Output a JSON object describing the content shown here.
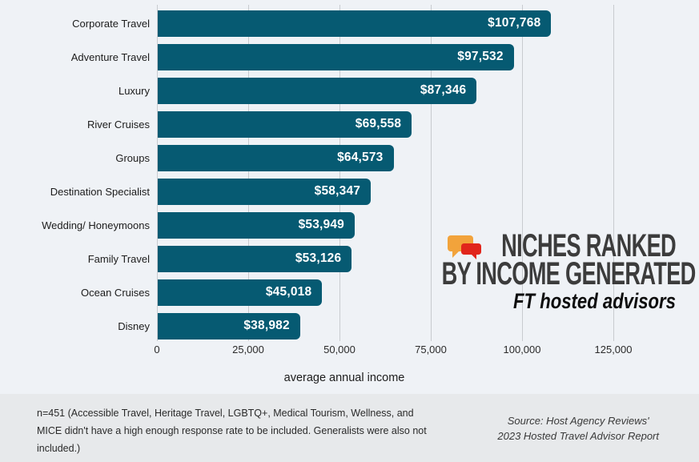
{
  "chart_data": {
    "type": "bar",
    "orientation": "horizontal",
    "title": "NICHES RANKED BY INCOME GENERATED",
    "subtitle": "FT hosted advisors",
    "xlabel": "average annual income",
    "categories": [
      "Corporate Travel",
      "Adventure Travel",
      "Luxury",
      "River Cruises",
      "Groups",
      "Destination Specialist",
      "Wedding/ Honeymoons",
      "Family Travel",
      "Ocean Cruises",
      "Disney"
    ],
    "values": [
      107768,
      97532,
      87346,
      69558,
      64573,
      58347,
      53949,
      53126,
      45018,
      38982
    ],
    "display_values": [
      "$107,768",
      "$97,532",
      "$87,346",
      "$69,558",
      "$64,573",
      "$58,347",
      "$53,949",
      "$53,126",
      "$45,018",
      "$38,982"
    ],
    "x_ticks": [
      "0",
      "25,000",
      "50,000",
      "75,000",
      "100,000",
      "125,000"
    ],
    "x_tick_values": [
      0,
      25000,
      50000,
      75000,
      100000,
      125000
    ],
    "xlim": [
      0,
      130000
    ],
    "grid": true,
    "legend": "none",
    "bar_color": "#065A72",
    "value_label_color": "#FFFFFF"
  },
  "title_block": {
    "line1": "NICHES RANKED",
    "line2": "BY INCOME GENERATED",
    "subtitle": "FT hosted advisors",
    "logo_icon": "chat-bubbles-logo",
    "logo_yellow": "#F2A33B",
    "logo_red": "#E1251B"
  },
  "footer": {
    "note_lines": [
      "n=451 (Accessible Travel, Heritage Travel, LGBTQ+, Medical Tourism, Wellness, and",
      "MICE didn't have a high enough response rate to be included. Generalists were also not",
      "included.)"
    ],
    "source_line1": "Source: Host Agency Reviews'",
    "source_line2": "2023 Hosted Travel Advisor Report"
  },
  "colors": {
    "background": "#EFF2F6",
    "footer_background": "#E7E9EB",
    "gridline": "#C8CBCF",
    "title_text": "#3C3C3C",
    "bar": "#065A72"
  }
}
